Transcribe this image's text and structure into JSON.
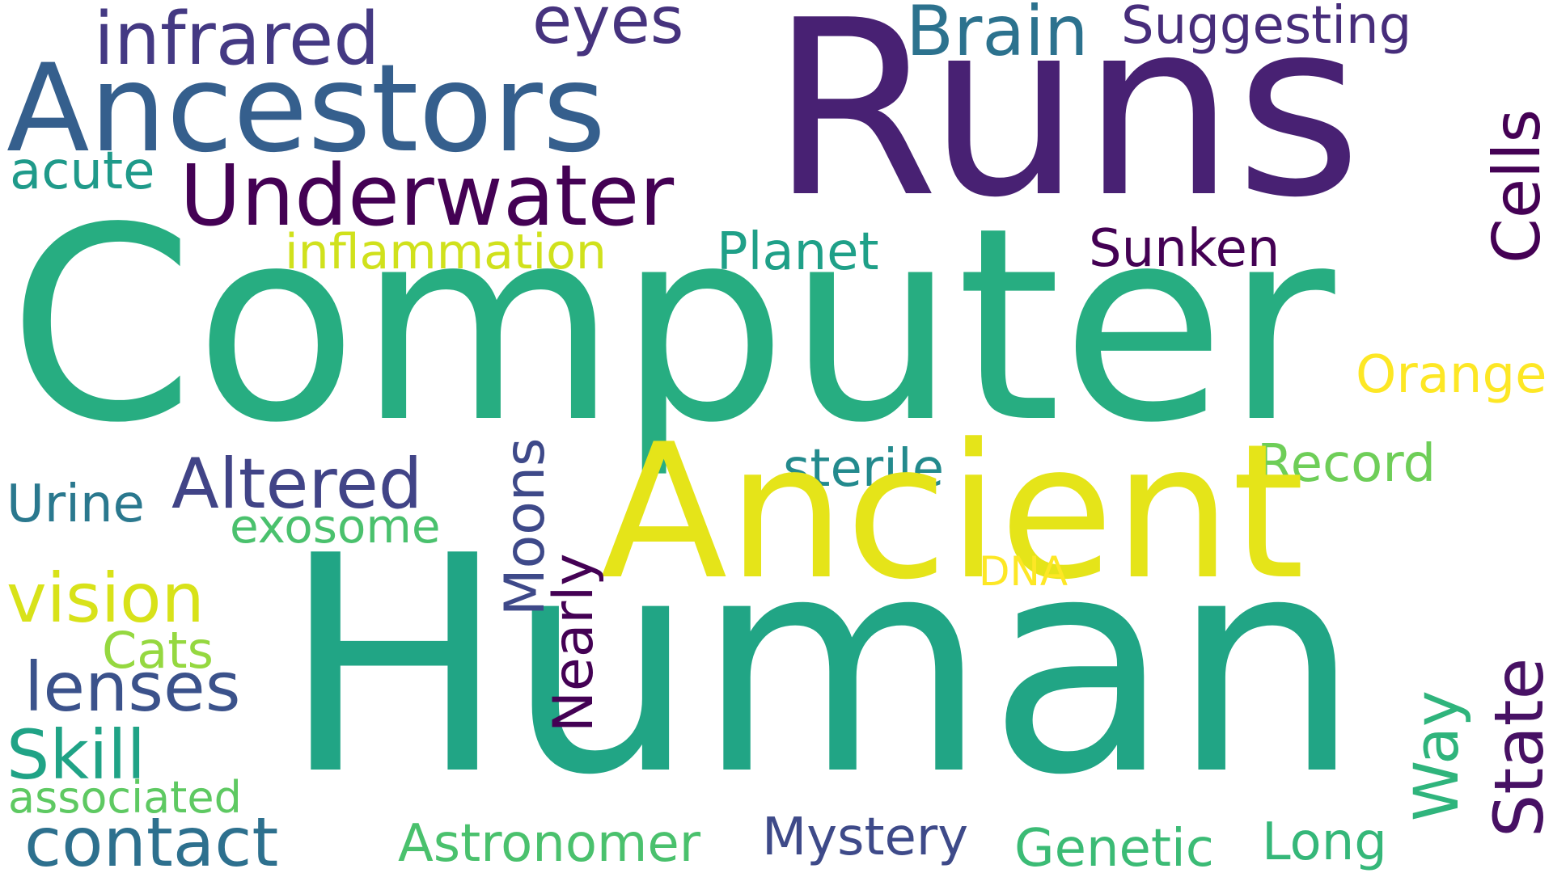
{
  "words": {
    "computer": {
      "text": "Computer",
      "color": "#27ad81"
    },
    "human": {
      "text": "Human",
      "color": "#21a585"
    },
    "runs": {
      "text": "Runs",
      "color": "#482173"
    },
    "ancient": {
      "text": "Ancient",
      "color": "#e5e419"
    },
    "ancestors": {
      "text": "Ancestors",
      "color": "#355f8d"
    },
    "underwater": {
      "text": "Underwater",
      "color": "#440154"
    },
    "infrared": {
      "text": "infrared",
      "color": "#443983"
    },
    "eyes": {
      "text": "eyes",
      "color": "#46337e"
    },
    "brain": {
      "text": "Brain",
      "color": "#2c728e"
    },
    "suggesting": {
      "text": "Suggesting",
      "color": "#472d7b"
    },
    "acute": {
      "text": "acute",
      "color": "#1f9a8a"
    },
    "inflammation": {
      "text": "inflammation",
      "color": "#d0e11c"
    },
    "planet": {
      "text": "Planet",
      "color": "#1fa088"
    },
    "sunken": {
      "text": "Sunken",
      "color": "#440154"
    },
    "cells": {
      "text": "Cells",
      "color": "#440154"
    },
    "orange": {
      "text": "Orange",
      "color": "#fde725"
    },
    "record": {
      "text": "Record",
      "color": "#6ece58"
    },
    "sterile": {
      "text": "sterile",
      "color": "#238a8d"
    },
    "altered": {
      "text": "Altered",
      "color": "#414487"
    },
    "urine": {
      "text": "Urine",
      "color": "#2a788e"
    },
    "exosome": {
      "text": "exosome",
      "color": "#4ac16d"
    },
    "moons": {
      "text": "Moons",
      "color": "#3e4989"
    },
    "nearly": {
      "text": "Nearly",
      "color": "#440154"
    },
    "dna": {
      "text": "DNA",
      "color": "#fde725"
    },
    "vision": {
      "text": "vision",
      "color": "#d8e219"
    },
    "cats": {
      "text": "Cats",
      "color": "#95d840"
    },
    "lenses": {
      "text": "lenses",
      "color": "#3b528b"
    },
    "skill": {
      "text": "Skill",
      "color": "#20a386"
    },
    "associated": {
      "text": "associated",
      "color": "#5ec962"
    },
    "contact": {
      "text": "contact",
      "color": "#2d708e"
    },
    "astronomer": {
      "text": "Astronomer",
      "color": "#4ac16d"
    },
    "mystery": {
      "text": "Mystery",
      "color": "#3e4a89"
    },
    "genetic": {
      "text": "Genetic",
      "color": "#3bbb75"
    },
    "long": {
      "text": "Long",
      "color": "#35b779"
    },
    "way": {
      "text": "Way",
      "color": "#2fb47c"
    },
    "state": {
      "text": "State",
      "color": "#471164"
    }
  }
}
